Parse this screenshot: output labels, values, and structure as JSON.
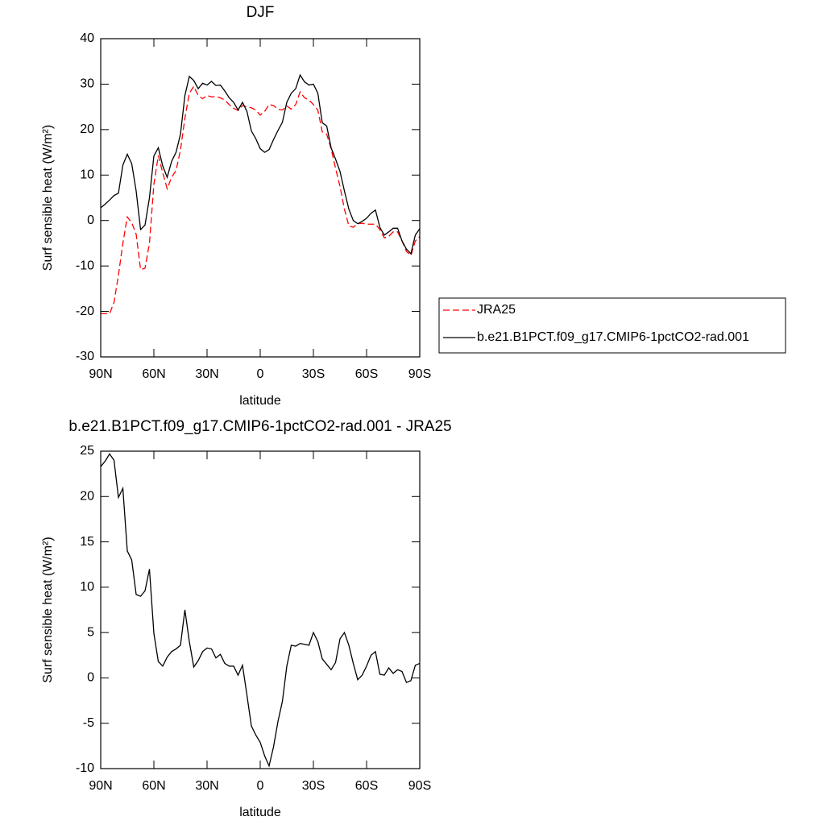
{
  "chart_data": [
    {
      "type": "line",
      "title": "DJF",
      "xlabel": "latitude",
      "ylabel": "Surf sensible heat (W/m²)",
      "xlim": [
        90,
        -90
      ],
      "xticks": [
        {
          "value": 90,
          "label": "90N"
        },
        {
          "value": 60,
          "label": "60N"
        },
        {
          "value": 30,
          "label": "30N"
        },
        0,
        {
          "value": -30,
          "label": "30S"
        },
        {
          "value": -60,
          "label": "60S"
        },
        {
          "value": -90,
          "label": "90S"
        }
      ],
      "ylim": [
        -30,
        40
      ],
      "yticks": [
        -30,
        -20,
        -10,
        0,
        10,
        20,
        30,
        40
      ],
      "legend": "right",
      "x": [
        90,
        87.5,
        85,
        82.5,
        80,
        77.5,
        75,
        72.5,
        70,
        67.5,
        65,
        62.5,
        60,
        57.5,
        55,
        52.5,
        50,
        47.5,
        45,
        42.5,
        40,
        37.5,
        35,
        32.5,
        30,
        27.5,
        25,
        22.5,
        20,
        17.5,
        15,
        12.5,
        10,
        7.5,
        5,
        2.5,
        0,
        -2.5,
        -5,
        -7.5,
        -10,
        -12.5,
        -15,
        -17.5,
        -20,
        -22.5,
        -25,
        -27.5,
        -30,
        -32.5,
        -35,
        -37.5,
        -40,
        -42.5,
        -45,
        -47.5,
        -50,
        -52.5,
        -55,
        -57.5,
        -60,
        -62.5,
        -65,
        -67.5,
        -70,
        -72.5,
        -75,
        -77.5,
        -80,
        -82.5,
        -85,
        -87.5,
        -90
      ],
      "series": [
        {
          "name": "JRA25",
          "color": "#ff0000",
          "dash": true,
          "values": [
            -20.5,
            -20.5,
            -20.5,
            -18,
            -12,
            -5,
            0.8,
            -0.5,
            -3,
            -10.8,
            -10.5,
            -5,
            8,
            14.3,
            10.5,
            7,
            9.5,
            11,
            15.5,
            22.5,
            28,
            29.5,
            27.5,
            26.8,
            27.5,
            27.2,
            27.3,
            27,
            26.5,
            25.5,
            24.7,
            24.2,
            25.3,
            25,
            24.8,
            24.3,
            23.2,
            24,
            25.5,
            25.3,
            24.5,
            24.3,
            25.2,
            24.5,
            25.5,
            28.3,
            27,
            26.5,
            25.5,
            24.3,
            19.5,
            19,
            15.8,
            11.5,
            7.5,
            2.5,
            -1.2,
            -1.5,
            -0.7,
            -0.6,
            -0.8,
            -0.8,
            -0.8,
            -2,
            -3.8,
            -3.5,
            -2.5,
            -2.5,
            -4.5,
            -6.8,
            -7.7,
            -4.5,
            -3.5
          ]
        },
        {
          "name": "b.e21.B1PCT.f09_g17.CMIP6-1pctCO2-rad.001",
          "color": "#000000",
          "dash": false,
          "values": [
            2.8,
            3.6,
            4.5,
            5.5,
            6,
            12.2,
            14.6,
            12.5,
            6.5,
            -2,
            -1,
            5,
            14.2,
            16,
            12,
            9.5,
            13,
            15,
            19,
            27.5,
            31.7,
            30.8,
            29,
            30.2,
            29.8,
            30.6,
            29.7,
            29.8,
            28.5,
            27,
            26,
            24.3,
            26,
            24,
            19.7,
            18,
            15.8,
            15,
            15.6,
            17.8,
            19.8,
            21.6,
            26,
            28,
            29,
            32,
            30.5,
            29.8,
            30,
            28,
            21.5,
            20.8,
            16,
            13.5,
            10.8,
            6.5,
            2.5,
            0,
            -0.7,
            -0.2,
            0.5,
            1.6,
            2.3,
            -1.5,
            -3.2,
            -2.5,
            -1.7,
            -1.7,
            -4.5,
            -6.3,
            -7.3,
            -3.2,
            -1.8
          ]
        }
      ]
    },
    {
      "type": "line",
      "title": "b.e21.B1PCT.f09_g17.CMIP6-1pctCO2-rad.001 - JRA25",
      "xlabel": "latitude",
      "ylabel": "Surf sensible heat (W/m²)",
      "xlim": [
        90,
        -90
      ],
      "xticks": [
        {
          "value": 90,
          "label": "90N"
        },
        {
          "value": 60,
          "label": "60N"
        },
        {
          "value": 30,
          "label": "30N"
        },
        0,
        {
          "value": -30,
          "label": "30S"
        },
        {
          "value": -60,
          "label": "60S"
        },
        {
          "value": -90,
          "label": "90S"
        }
      ],
      "ylim": [
        -10,
        25
      ],
      "yticks": [
        -10,
        -5,
        0,
        5,
        10,
        15,
        20,
        25
      ],
      "x": [
        90,
        87.5,
        85,
        82.5,
        80,
        77.5,
        75,
        72.5,
        70,
        67.5,
        65,
        62.5,
        60,
        57.5,
        55,
        52.5,
        50,
        47.5,
        45,
        42.5,
        40,
        37.5,
        35,
        32.5,
        30,
        27.5,
        25,
        22.5,
        20,
        17.5,
        15,
        12.5,
        10,
        7.5,
        5,
        2.5,
        0,
        -2.5,
        -5,
        -7.5,
        -10,
        -12.5,
        -15,
        -17.5,
        -20,
        -22.5,
        -25,
        -27.5,
        -30,
        -32.5,
        -35,
        -37.5,
        -40,
        -42.5,
        -45,
        -47.5,
        -50,
        -52.5,
        -55,
        -57.5,
        -60,
        -62.5,
        -65,
        -67.5,
        -70,
        -72.5,
        -75,
        -77.5,
        -80,
        -82.5,
        -85,
        -87.5,
        -90
      ],
      "series": [
        {
          "color": "#000000",
          "dash": false,
          "values": [
            23.3,
            23.9,
            24.7,
            24,
            19.9,
            20.9,
            14,
            13,
            9.2,
            9,
            9.6,
            12,
            4.9,
            1.8,
            1.3,
            2.3,
            2.9,
            3.2,
            3.6,
            7.5,
            4,
            1.2,
            1.9,
            2.9,
            3.3,
            3.2,
            2.2,
            2.6,
            1.6,
            1.3,
            1.3,
            0.3,
            1.4,
            -1.9,
            -5.3,
            -6.3,
            -7.1,
            -8.6,
            -9.7,
            -7.6,
            -4.8,
            -2.6,
            1.3,
            3.6,
            3.5,
            3.8,
            3.7,
            3.6,
            5,
            4,
            2.1,
            1.5,
            0.9,
            1.7,
            4.3,
            5,
            3.6,
            1.6,
            -0.2,
            0.3,
            1.3,
            2.5,
            2.9,
            0.4,
            0.3,
            1.1,
            0.5,
            0.9,
            0.7,
            -0.5,
            -0.3,
            1.4,
            1.6
          ]
        }
      ]
    }
  ]
}
